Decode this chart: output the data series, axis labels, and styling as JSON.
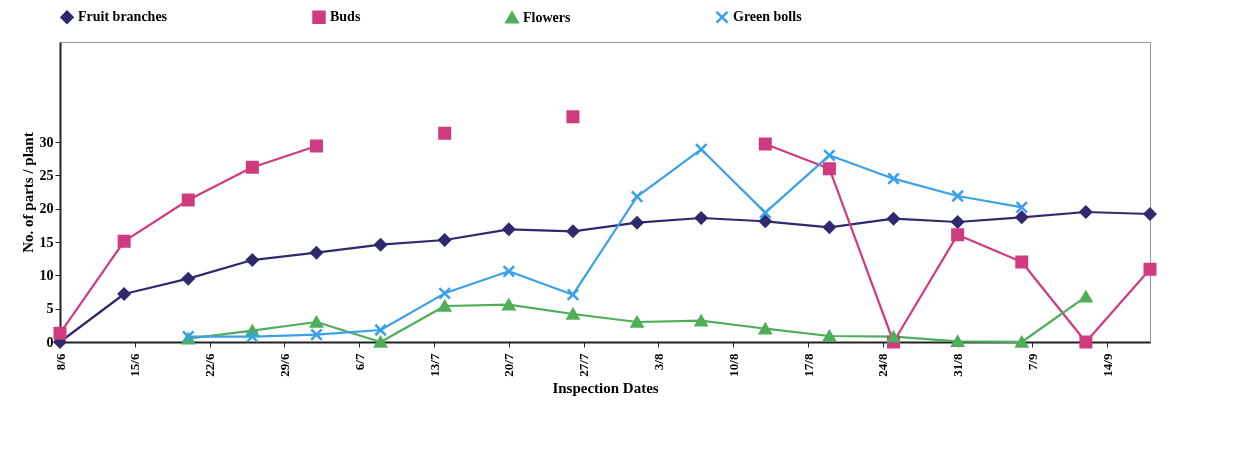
{
  "chart_data": {
    "type": "line",
    "xlabel": "Inspection Dates",
    "ylabel": "No. of parts / plant",
    "x": [
      "--06-08",
      "--06-14",
      "--06-20",
      "--06-26",
      "--07-02",
      "--07-08",
      "--07-14",
      "--07-20",
      "--07-26",
      "--08-01",
      "--08-07",
      "--08-13",
      "--08-19",
      "--08-25",
      "--08-31",
      "--09-06",
      "--09-12",
      "--09-18"
    ],
    "xlim": [
      "--06-08",
      "--09-18"
    ],
    "xticks": [
      {
        "value": "--06-08",
        "label": "8/6"
      },
      {
        "value": "--06-15",
        "label": "15/6"
      },
      {
        "value": "--06-22",
        "label": "22/6"
      },
      {
        "value": "--06-29",
        "label": "29/6"
      },
      {
        "value": "--07-06",
        "label": "6/7"
      },
      {
        "value": "--07-13",
        "label": "13/7"
      },
      {
        "value": "--07-20",
        "label": "20/7"
      },
      {
        "value": "--07-27",
        "label": "27/7"
      },
      {
        "value": "--08-03",
        "label": "3/8"
      },
      {
        "value": "--08-10",
        "label": "10/8"
      },
      {
        "value": "--08-17",
        "label": "17/8"
      },
      {
        "value": "--08-24",
        "label": "24/8"
      },
      {
        "value": "--08-31",
        "label": "31/8"
      },
      {
        "value": "--09-07",
        "label": "7/9"
      },
      {
        "value": "--09-14",
        "label": "14/9"
      }
    ],
    "ylim": [
      0,
      45
    ],
    "yticks": [
      0,
      5,
      10,
      15,
      20,
      25,
      30
    ],
    "grid": false,
    "legend": "top",
    "series": [
      {
        "name": "Fruit branches",
        "color": "#2e2a6e",
        "marker": "diamond",
        "values": [
          0,
          7.2,
          9.5,
          12.3,
          13.4,
          14.6,
          15.3,
          16.9,
          16.6,
          17.9,
          18.6,
          18.1,
          17.2,
          18.5,
          18.0,
          18.7,
          19.5,
          19.2
        ]
      },
      {
        "name": "Buds",
        "color": "#d03a7e",
        "marker": "square",
        "values": [
          1.3,
          15.1,
          21.3,
          26.2,
          29.4,
          null,
          31.3,
          null,
          33.8,
          null,
          null,
          29.7,
          26.0,
          0,
          16.1,
          12.0,
          0,
          10.9
        ]
      },
      {
        "name": "Flowers",
        "color": "#4fae5a",
        "marker": "triangle",
        "values": [
          null,
          null,
          0.5,
          1.7,
          3.0,
          0,
          5.4,
          5.6,
          4.2,
          3.0,
          3.2,
          2.0,
          0.9,
          0.8,
          0.1,
          0,
          6.8,
          null
        ]
      },
      {
        "name": "Green bolls",
        "color": "#3aa0e8",
        "marker": "cross",
        "values": [
          null,
          null,
          0.8,
          0.8,
          1.1,
          1.8,
          7.3,
          10.6,
          7.1,
          21.8,
          28.9,
          19.4,
          28.0,
          24.5,
          21.9,
          20.2,
          null,
          null
        ]
      }
    ]
  }
}
